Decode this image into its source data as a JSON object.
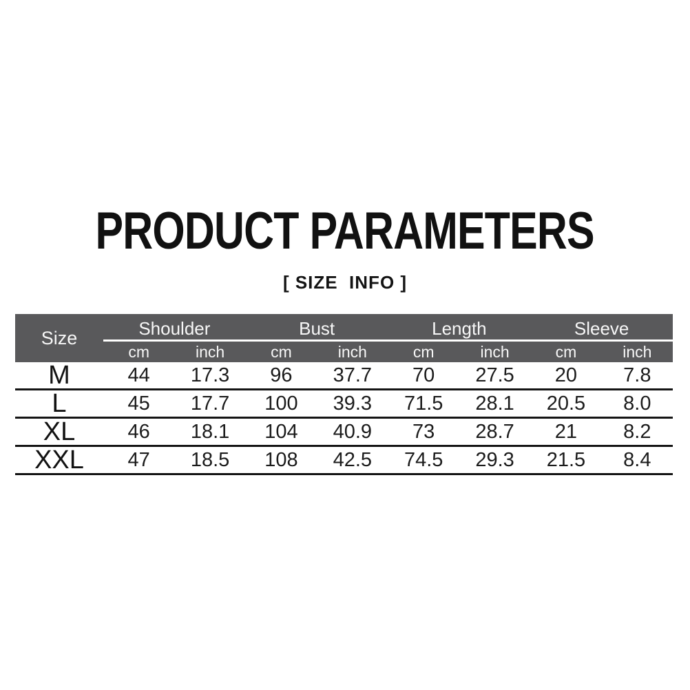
{
  "page": {
    "title": "PRODUCT PARAMETERS",
    "subtitle": "[ SIZE  INFO ]"
  },
  "table": {
    "size_header": "Size",
    "groups": [
      "Shoulder",
      "Bust",
      "Length",
      "Sleeve"
    ],
    "units": [
      "cm",
      "inch",
      "cm",
      "inch",
      "cm",
      "inch",
      "cm",
      "inch"
    ],
    "rows": [
      {
        "size": "M",
        "values": [
          "44",
          "17.3",
          "96",
          "37.7",
          "70",
          "27.5",
          "20",
          "7.8"
        ]
      },
      {
        "size": "L",
        "values": [
          "45",
          "17.7",
          "100",
          "39.3",
          "71.5",
          "28.1",
          "20.5",
          "8.0"
        ]
      },
      {
        "size": "XL",
        "values": [
          "46",
          "18.1",
          "104",
          "40.9",
          "73",
          "28.7",
          "21",
          "8.2"
        ]
      },
      {
        "size": "XXL",
        "values": [
          "47",
          "18.5",
          "108",
          "42.5",
          "74.5",
          "29.3",
          "21.5",
          "8.4"
        ]
      }
    ]
  },
  "colors": {
    "header_bg": "#59595b",
    "header_text": "#f7f7f7",
    "header_line": "#ffffff",
    "divider": "#141414",
    "body_text": "#1b1b1b",
    "background": "#ffffff"
  },
  "chart_data": {
    "type": "table",
    "title": "PRODUCT PARAMETERS",
    "subtitle": "[ SIZE  INFO ]",
    "columns": [
      "Size",
      "Shoulder cm",
      "Shoulder inch",
      "Bust cm",
      "Bust inch",
      "Length cm",
      "Length inch",
      "Sleeve cm",
      "Sleeve inch"
    ],
    "rows": [
      [
        "M",
        44,
        17.3,
        96,
        37.7,
        70,
        27.5,
        20,
        7.8
      ],
      [
        "L",
        45,
        17.7,
        100,
        39.3,
        71.5,
        28.1,
        20.5,
        8.0
      ],
      [
        "XL",
        46,
        18.1,
        104,
        40.9,
        73,
        28.7,
        21,
        8.2
      ],
      [
        "XXL",
        47,
        18.5,
        108,
        42.5,
        74.5,
        29.3,
        21.5,
        8.4
      ]
    ],
    "legend_position": "none",
    "grid": "horizontal-dividers-only"
  }
}
